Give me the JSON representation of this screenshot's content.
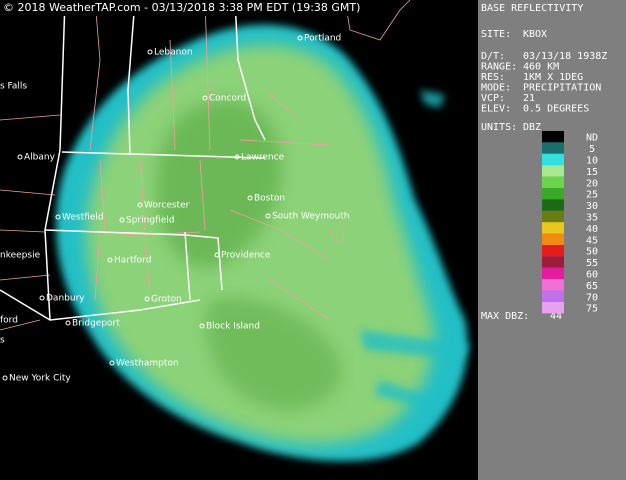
{
  "header": {
    "copyright": "© 2018 WeatherTAP.com - 03/13/2018  3:38 PM EDT (19:38 GMT)"
  },
  "panel": {
    "title": "BASE REFLECTIVITY",
    "site_label": "SITE:",
    "site": "KBOX",
    "info": [
      {
        "label": "D/T:",
        "value": "03/13/18 1938Z"
      },
      {
        "label": "RANGE:",
        "value": "460 KM"
      },
      {
        "label": "RES:",
        "value": "1KM X 1DEG"
      },
      {
        "label": "MODE:",
        "value": "PRECIPITATION"
      },
      {
        "label": "VCP:",
        "value": "21"
      },
      {
        "label": "ELEV:",
        "value": "0.5 DEGREES"
      }
    ],
    "units_label": "UNITS:",
    "units": "DBZ",
    "legend": [
      {
        "label": "ND",
        "color": "#000000"
      },
      {
        "label": 5,
        "color": "#1b6f6f"
      },
      {
        "label": 10,
        "color": "#33e0e0"
      },
      {
        "label": 15,
        "color": "#a8e890"
      },
      {
        "label": 20,
        "color": "#6cd44c"
      },
      {
        "label": 25,
        "color": "#3aa828"
      },
      {
        "label": 30,
        "color": "#1c6a14"
      },
      {
        "label": 35,
        "color": "#6a7c14"
      },
      {
        "label": 40,
        "color": "#e8c81c"
      },
      {
        "label": 45,
        "color": "#f08a10"
      },
      {
        "label": 50,
        "color": "#e41c1c"
      },
      {
        "label": 55,
        "color": "#a01c3c"
      },
      {
        "label": 60,
        "color": "#e41ca0"
      },
      {
        "label": 65,
        "color": "#f070d8"
      },
      {
        "label": 70,
        "color": "#c070e8"
      },
      {
        "label": 75,
        "color": "#e8a0f0"
      }
    ],
    "max_label": "MAX DBZ:",
    "max_value": 44
  },
  "map": {
    "cities": [
      "Portland",
      "Lebanon",
      "Concord",
      "s Falls",
      "Lawrence",
      "Albany",
      "Worcester",
      "Boston",
      "South Weymouth",
      "Westfield",
      "Springfield",
      "nkeepsie",
      "Hartford",
      "Providence",
      "Danbury",
      "Groton",
      "ford",
      "Bridgeport",
      "Block Island",
      "s",
      "Westhampton",
      "New York City"
    ]
  }
}
